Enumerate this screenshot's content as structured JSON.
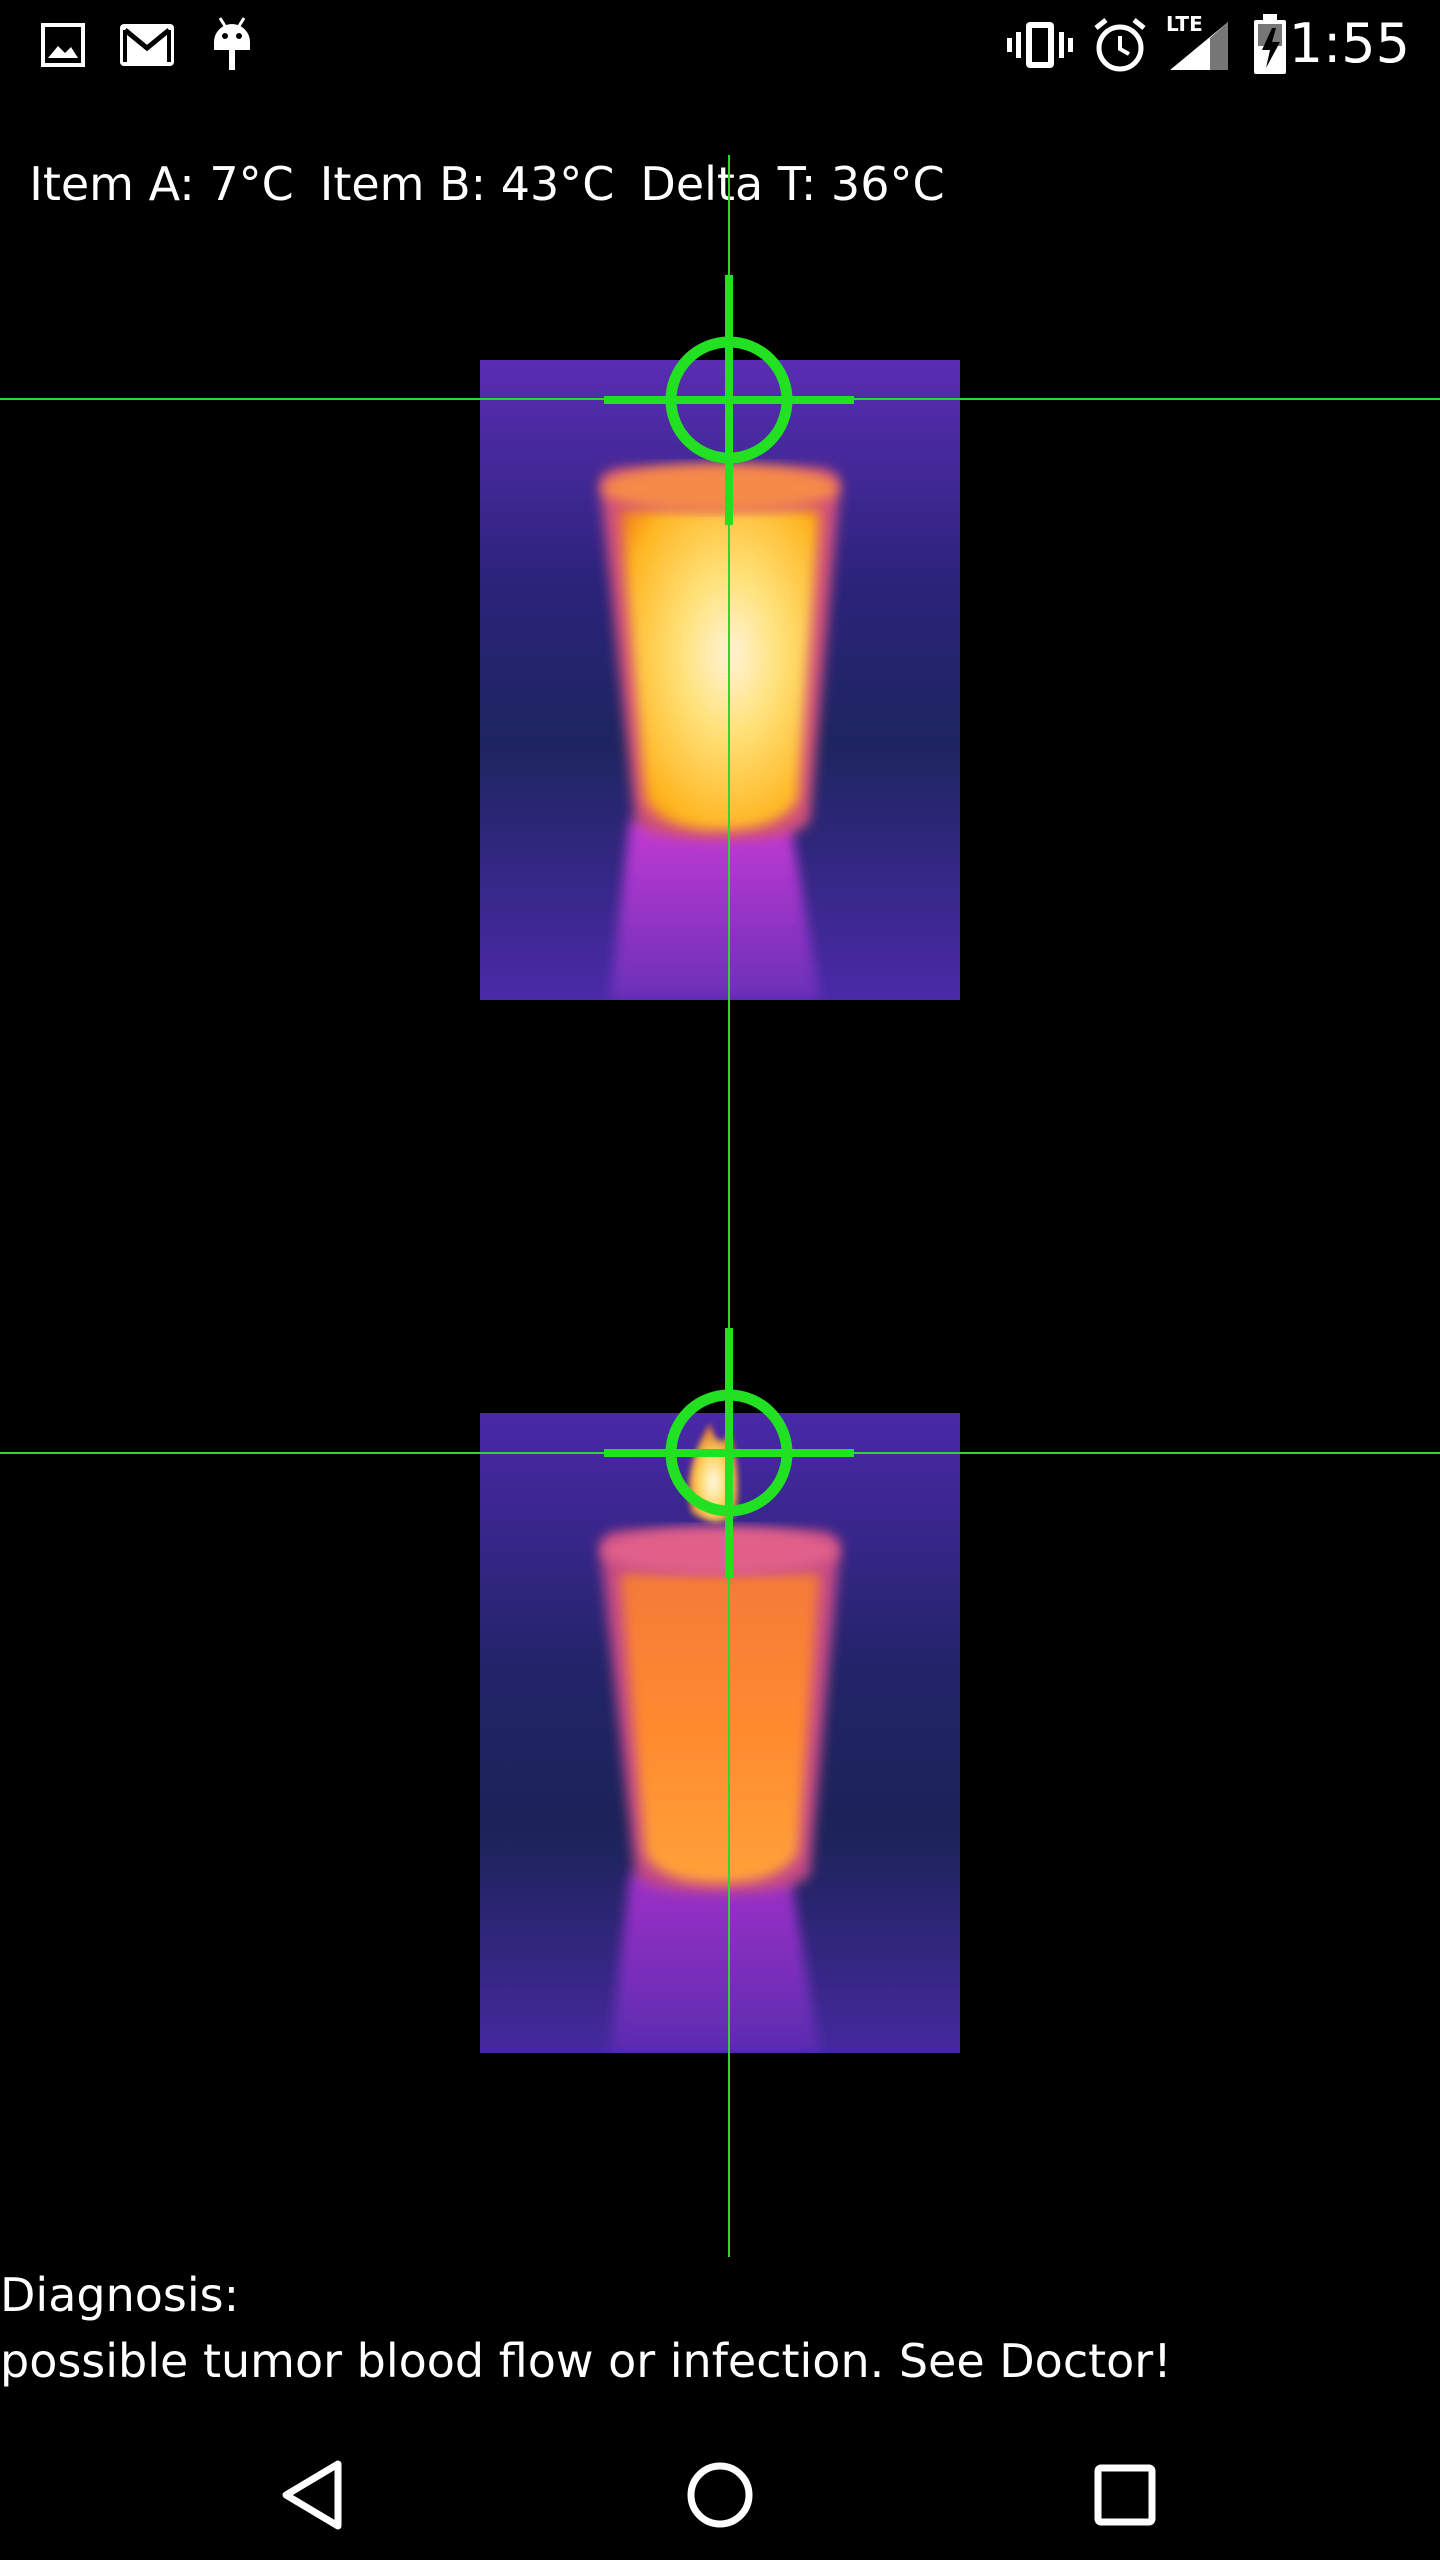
{
  "status_bar": {
    "time": "1:55",
    "network_label": "LTE",
    "left_icons": [
      "image-icon",
      "gmail-icon",
      "android-icon"
    ],
    "right_icons": [
      "vibrate-icon",
      "alarm-icon",
      "signal-icon",
      "battery-charging-icon"
    ]
  },
  "readout": {
    "item_a": "Item A: 7°C",
    "item_b": "Item B: 43°C",
    "delta": "Delta T: 36°C"
  },
  "diagnosis": {
    "label": "Diagnosis:",
    "text": "possible tumor blood flow or infection. See Doctor!"
  },
  "colors": {
    "crosshair": "#22e022",
    "guide_line": "#2fd62f",
    "background": "#000000"
  },
  "nav_bar": {
    "icons": [
      "back-icon",
      "home-icon",
      "recents-icon"
    ]
  }
}
